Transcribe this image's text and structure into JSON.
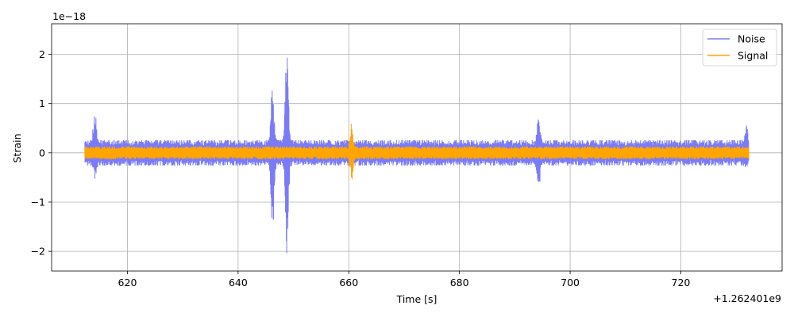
{
  "chart_data": {
    "type": "line",
    "xlabel": "Time [s]",
    "ylabel": "Strain",
    "x_offset_label": "+1.262401e9",
    "y_scale_label": "1e−18",
    "xlim": [
      606.3,
      738.3
    ],
    "ylim": [
      -2.4,
      2.62
    ],
    "x_ticks": [
      620,
      640,
      660,
      680,
      700,
      720
    ],
    "x_tick_labels": [
      "620",
      "640",
      "660",
      "680",
      "700",
      "720"
    ],
    "y_ticks": [
      -2,
      -1,
      0,
      1,
      2
    ],
    "y_tick_labels": [
      "−2",
      "−1",
      "0",
      "1",
      "2"
    ],
    "grid": true,
    "legend_position": "top-right",
    "series": [
      {
        "name": "Noise",
        "color": "#7b7bf7",
        "x_range": [
          612.3,
          732.3
        ],
        "baseline_upper_envelope": 0.25,
        "baseline_lower_envelope": -0.25,
        "features": [
          {
            "x": 614.1,
            "max": 0.9,
            "min": -0.55
          },
          {
            "x": 646.2,
            "max": 1.55,
            "min": -1.65
          },
          {
            "x": 648.8,
            "max": 2.4,
            "min": -2.17
          },
          {
            "x": 694.3,
            "max": 0.75,
            "min": -0.72
          },
          {
            "x": 731.8,
            "max": 0.6,
            "min": -0.3
          }
        ]
      },
      {
        "name": "Signal",
        "color": "#ffa500",
        "x_range": [
          612.3,
          732.3
        ],
        "baseline_upper_envelope": 0.12,
        "baseline_lower_envelope": -0.12,
        "features": [
          {
            "x": 660.5,
            "max": 0.6,
            "min": -0.55
          }
        ]
      }
    ]
  }
}
